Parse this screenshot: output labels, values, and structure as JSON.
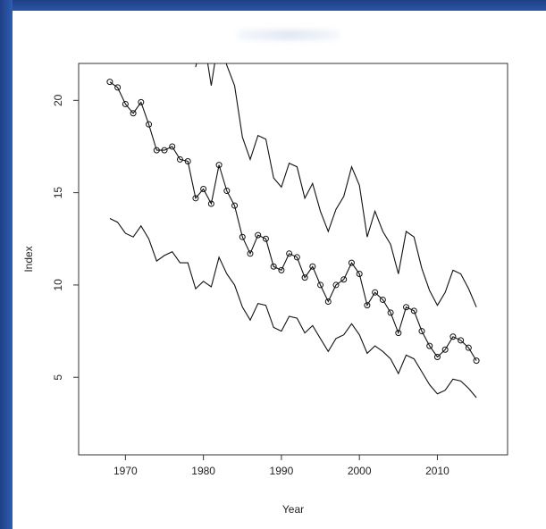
{
  "chart_data": {
    "type": "line",
    "title": "",
    "xlabel": "Year",
    "ylabel": "Index",
    "xlim": [
      1964,
      2019
    ],
    "ylim": [
      0.8,
      22
    ],
    "xticks": [
      1970,
      1980,
      1990,
      2000,
      2010
    ],
    "yticks": [
      5,
      10,
      15,
      20
    ],
    "grid": false,
    "series": [
      {
        "markers": true,
        "x": [
          1968,
          1969,
          1970,
          1971,
          1972,
          1973,
          1974,
          1975,
          1976,
          1977,
          1978,
          1979,
          1980,
          1981,
          1982,
          1983,
          1984,
          1985,
          1986,
          1987,
          1988,
          1989,
          1990,
          1991,
          1992,
          1993,
          1994,
          1995,
          1996,
          1997,
          1998,
          1999,
          2000,
          2001,
          2002,
          2003,
          2004,
          2005,
          2006,
          2007,
          2008,
          2009,
          2010,
          2011,
          2012,
          2013,
          2014,
          2015
        ],
        "values": [
          21.0,
          20.7,
          19.8,
          19.3,
          19.9,
          18.7,
          17.3,
          17.3,
          17.5,
          16.8,
          16.7,
          14.7,
          15.2,
          14.4,
          16.5,
          15.1,
          14.3,
          12.6,
          11.7,
          12.7,
          12.5,
          11.0,
          10.8,
          11.7,
          11.5,
          10.4,
          11.0,
          10.0,
          9.1,
          10.0,
          10.3,
          11.2,
          10.6,
          8.9,
          9.6,
          9.2,
          8.5,
          7.4,
          8.8,
          8.6,
          7.5,
          6.7,
          6.1,
          6.5,
          7.2,
          7.0,
          6.6,
          5.9
        ]
      },
      {
        "markers": false,
        "x": [
          1968,
          1969,
          1970,
          1971,
          1972,
          1973,
          1974,
          1975,
          1976,
          1977,
          1978,
          1979,
          1980,
          1981,
          1982,
          1983,
          1984,
          1985,
          1986,
          1987,
          1988,
          1989,
          1990,
          1991,
          1992,
          1993,
          1994,
          1995,
          1996,
          1997,
          1998,
          1999,
          2000,
          2001,
          2002,
          2003,
          2004,
          2005,
          2006,
          2007,
          2008,
          2009,
          2010,
          2011,
          2012,
          2013,
          2014,
          2015
        ],
        "values": [
          13.6,
          13.4,
          12.8,
          12.6,
          13.2,
          12.5,
          11.3,
          11.6,
          11.8,
          11.2,
          11.2,
          9.8,
          10.2,
          9.9,
          11.5,
          10.6,
          10.0,
          8.8,
          8.1,
          9.0,
          8.9,
          7.7,
          7.5,
          8.3,
          8.2,
          7.4,
          7.8,
          7.1,
          6.4,
          7.1,
          7.3,
          7.9,
          7.3,
          6.3,
          6.7,
          6.4,
          6.0,
          5.2,
          6.2,
          6.0,
          5.3,
          4.6,
          4.1,
          4.3,
          4.9,
          4.8,
          4.4,
          3.9
        ]
      },
      {
        "markers": false,
        "x": [
          1979,
          1980,
          1981,
          1982,
          1983,
          1984,
          1985,
          1986,
          1987,
          1988,
          1989,
          1990,
          1991,
          1992,
          1993,
          1994,
          1995,
          1996,
          1997,
          1998,
          1999,
          2000,
          2001,
          2002,
          2003,
          2004,
          2005,
          2006,
          2007,
          2008,
          2009,
          2010,
          2011,
          2012,
          2013,
          2014,
          2015
        ],
        "values": [
          21.8,
          23.5,
          20.8,
          23.5,
          21.9,
          20.8,
          18.0,
          16.8,
          18.1,
          17.9,
          15.8,
          15.3,
          16.6,
          16.4,
          14.7,
          15.5,
          14.0,
          12.9,
          14.1,
          14.8,
          16.4,
          15.4,
          12.6,
          14.0,
          12.9,
          12.2,
          10.6,
          12.9,
          12.6,
          10.9,
          9.7,
          8.9,
          9.6,
          10.8,
          10.6,
          9.8,
          8.8
        ]
      }
    ]
  }
}
